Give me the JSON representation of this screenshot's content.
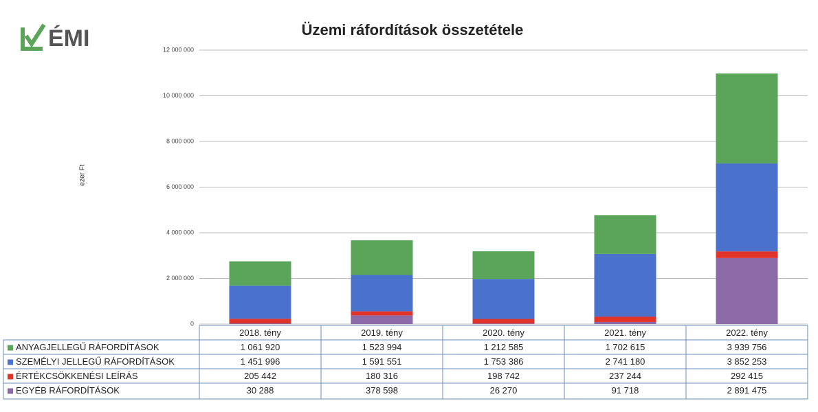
{
  "logo": "ÉMI",
  "chart_data": {
    "type": "stacked_bar",
    "title": "Üzemi ráfordítások összetétele",
    "y_label": "ezer Ft",
    "categories": [
      "2018. tény",
      "2019. tény",
      "2020. tény",
      "2021. tény",
      "2022. tény"
    ],
    "series": [
      {
        "name": "ANYAGJELLEGŰ RÁFORDÍTÁSOK",
        "color": "#5aa55a",
        "values": [
          1061920,
          1523994,
          1212585,
          1702615,
          3939756
        ],
        "value_labels": [
          "1 061 920",
          "1 523 994",
          "1 212 585",
          "1 702 615",
          "3 939 756"
        ]
      },
      {
        "name": "SZEMÉLYI JELLEGŰ RÁFORDÍTÁSOK",
        "color": "#4a72cc",
        "values": [
          1451996,
          1591551,
          1753386,
          2741180,
          3852253
        ],
        "value_labels": [
          "1 451 996",
          "1 591 551",
          "1 753 386",
          "2 741 180",
          "3 852 253"
        ]
      },
      {
        "name": "ÉRTÉKCSÖKKENÉSI LEÍRÁS",
        "color": "#e0342a",
        "values": [
          205442,
          180316,
          198742,
          237244,
          292415
        ],
        "value_labels": [
          "205 442",
          "180 316",
          "198 742",
          "237 244",
          "292 415"
        ]
      },
      {
        "name": "EGYÉB RÁFORDÍTÁSOK",
        "color": "#8c6aa8",
        "values": [
          30288,
          378598,
          26270,
          91718,
          2891475
        ],
        "value_labels": [
          "30 288",
          "378 598",
          "26 270",
          "91 718",
          "2 891 475"
        ]
      }
    ],
    "ylim": [
      0,
      12000000
    ],
    "yticks": [
      0,
      {
        "value": 2000000,
        "label": "2 000 000"
      },
      {
        "value": 4000000,
        "label": "4 000 000"
      },
      {
        "value": 6000000,
        "label": "6 000 000"
      },
      {
        "value": 8000000,
        "label": "8 000 000"
      },
      {
        "value": 10000000,
        "label": "10 000 000"
      },
      {
        "value": 12000000,
        "label": "12 000 000"
      }
    ],
    "grid": true
  }
}
